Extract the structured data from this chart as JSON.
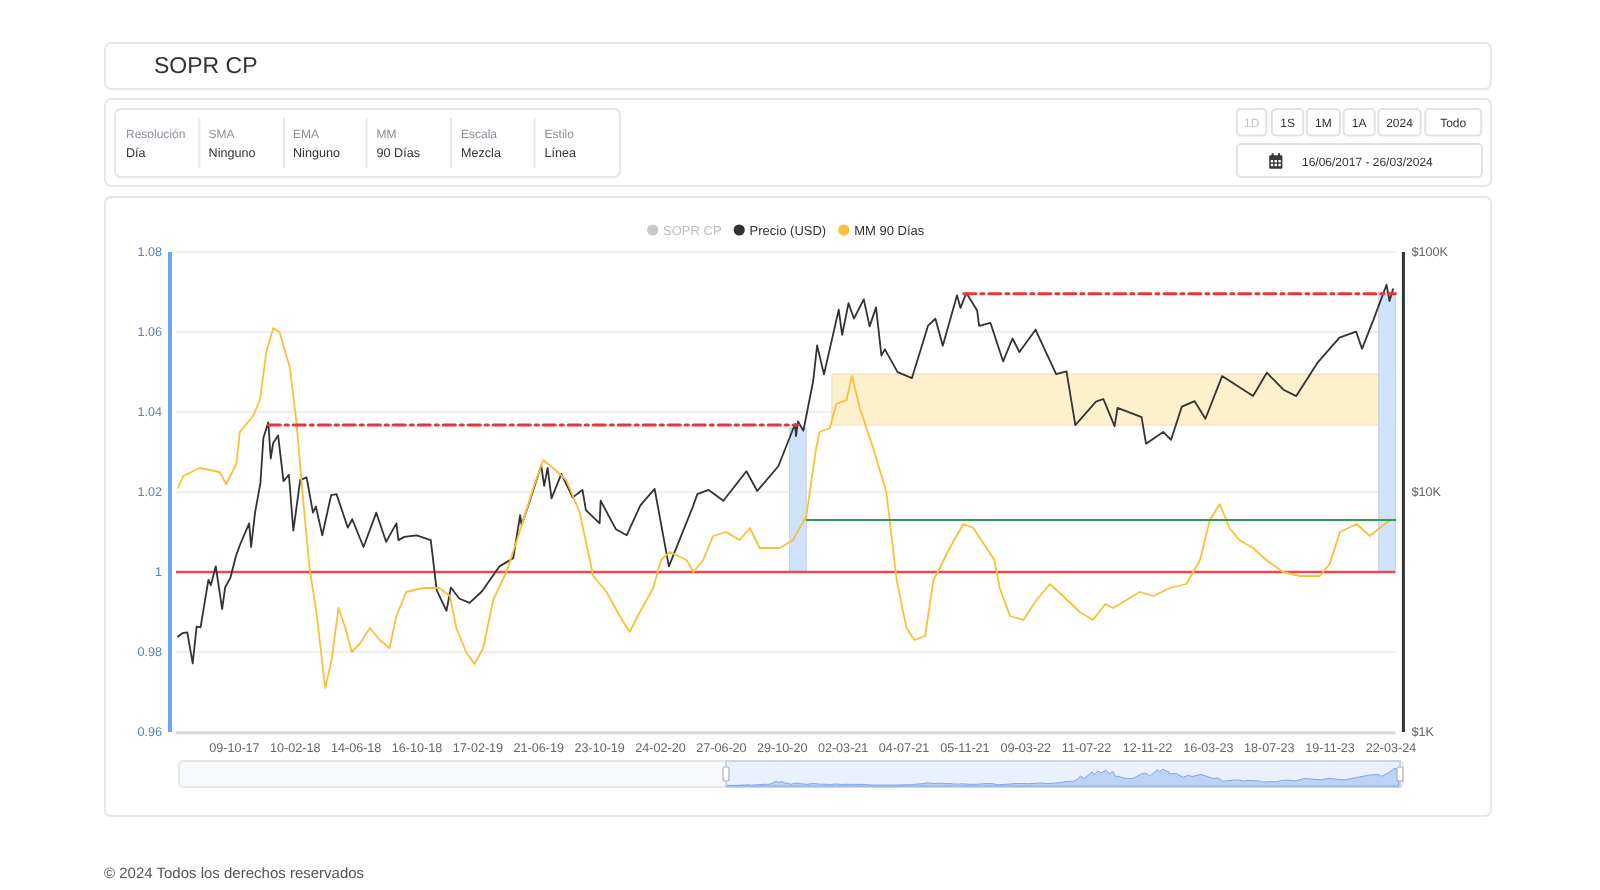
{
  "chart_data": {
    "type": "line",
    "title": "SOPR CP",
    "annotations": [
      "Resolución",
      "Día",
      "SMA",
      "Ninguno",
      "EMA",
      "Ninguno",
      "MM",
      "90 Días",
      "Escala",
      "Mezcla",
      "Estilo",
      "Línea",
      "1D",
      "1S",
      "1M",
      "1A",
      "2024",
      "Todo",
      "16/06/2017 - 26/03/2024",
      "© 2024 Todos los derechos reservados"
    ],
    "xlim": [
      "2017-06-12",
      "2024-03-31"
    ],
    "xticks": [
      {
        "value": "2017-10-09",
        "label": "09-10-17"
      },
      {
        "value": "2018-02-10",
        "label": "10-02-18"
      },
      {
        "value": "2018-06-14",
        "label": "14-06-18"
      },
      {
        "value": "2018-10-16",
        "label": "16-10-18"
      },
      {
        "value": "2019-02-17",
        "label": "17-02-19"
      },
      {
        "value": "2019-06-21",
        "label": "21-06-19"
      },
      {
        "value": "2019-10-23",
        "label": "23-10-19"
      },
      {
        "value": "2020-02-24",
        "label": "24-02-20"
      },
      {
        "value": "2020-06-27",
        "label": "27-06-20"
      },
      {
        "value": "2020-10-29",
        "label": "29-10-20"
      },
      {
        "value": "2021-03-02",
        "label": "02-03-21"
      },
      {
        "value": "2021-07-04",
        "label": "04-07-21"
      },
      {
        "value": "2021-11-05",
        "label": "05-11-21"
      },
      {
        "value": "2022-03-09",
        "label": "09-03-22"
      },
      {
        "value": "2022-07-11",
        "label": "11-07-22"
      },
      {
        "value": "2022-11-12",
        "label": "12-11-22"
      },
      {
        "value": "2023-03-16",
        "label": "16-03-23"
      },
      {
        "value": "2023-07-18",
        "label": "18-07-23"
      },
      {
        "value": "2023-11-19",
        "label": "19-11-23"
      },
      {
        "value": "2024-03-22",
        "label": "22-03-24"
      }
    ],
    "ylim": [
      0.96,
      1.08
    ],
    "yticks": [
      0.96,
      0.98,
      1,
      1.02,
      1.04,
      1.06,
      1.08
    ],
    "y2lim": [
      1000,
      100000
    ],
    "y2ticks": [
      {
        "value": 1000,
        "label": "$1K"
      },
      {
        "value": 10000,
        "label": "$10K"
      },
      {
        "value": 100000,
        "label": "$100K"
      }
    ],
    "log": "y2",
    "grid": "y",
    "legend": "top",
    "ref_lines": [
      {
        "axis": "y",
        "value": 1,
        "color": "#f0474b"
      }
    ],
    "series": [
      {
        "name": "SOPR CP",
        "color": "#c8c8c8"
      },
      {
        "name": "Precio (USD)",
        "color": "#333333",
        "axis": "y2",
        "x": [
          "2017-06-16",
          "2017-06-25",
          "2017-07-05",
          "2017-07-16",
          "2017-07-24",
          "2017-08-01",
          "2017-08-17",
          "2017-08-22",
          "2017-09-01",
          "2017-09-14",
          "2017-09-20",
          "2017-10-01",
          "2017-10-12",
          "2017-10-20",
          "2017-11-08",
          "2017-11-12",
          "2017-11-20",
          "2017-12-01",
          "2017-12-07",
          "2017-12-17",
          "2017-12-22",
          "2017-12-27",
          "2018-01-06",
          "2018-01-17",
          "2018-01-28",
          "2018-02-06",
          "2018-02-20",
          "2018-03-05",
          "2018-03-18",
          "2018-03-24",
          "2018-04-06",
          "2018-04-24",
          "2018-05-05",
          "2018-05-28",
          "2018-06-06",
          "2018-06-29",
          "2018-07-25",
          "2018-08-14",
          "2018-09-04",
          "2018-09-08",
          "2018-09-20",
          "2018-10-15",
          "2018-11-13",
          "2018-11-25",
          "2018-12-15",
          "2018-12-24",
          "2019-01-10",
          "2019-01-31",
          "2019-02-25",
          "2019-04-02",
          "2019-04-30",
          "2019-05-14",
          "2019-05-17",
          "2019-05-30",
          "2019-06-26",
          "2019-07-02",
          "2019-07-09",
          "2019-07-17",
          "2019-08-06",
          "2019-08-29",
          "2019-09-18",
          "2019-09-25",
          "2019-10-23",
          "2019-10-25",
          "2019-11-25",
          "2019-12-17",
          "2020-01-14",
          "2020-02-12",
          "2020-03-12",
          "2020-04-30",
          "2020-05-09",
          "2020-06-01",
          "2020-07-01",
          "2020-08-17",
          "2020-09-08",
          "2020-10-21",
          "2020-11-24",
          "2020-11-26",
          "2020-11-30",
          "2020-12-11",
          "2020-12-31",
          "2021-01-08",
          "2021-01-22",
          "2021-02-21",
          "2021-02-28",
          "2021-03-13",
          "2021-03-24",
          "2021-04-13",
          "2021-04-25",
          "2021-05-08",
          "2021-05-19",
          "2021-05-26",
          "2021-06-21",
          "2021-07-20",
          "2021-08-22",
          "2021-09-06",
          "2021-09-21",
          "2021-10-20",
          "2021-10-27",
          "2021-11-08",
          "2021-11-30",
          "2021-12-04",
          "2021-12-27",
          "2022-01-22",
          "2022-02-10",
          "2022-02-24",
          "2022-03-29",
          "2022-05-10",
          "2022-05-31",
          "2022-06-18",
          "2022-07-30",
          "2022-08-14",
          "2022-09-06",
          "2022-09-12",
          "2022-10-31",
          "2022-11-09",
          "2022-12-14",
          "2022-12-30",
          "2023-01-21",
          "2023-02-16",
          "2023-03-10",
          "2023-04-13",
          "2023-06-15",
          "2023-07-13",
          "2023-08-17",
          "2023-09-11",
          "2023-10-24",
          "2023-12-08",
          "2024-01-11",
          "2024-01-23",
          "2024-02-15",
          "2024-03-13",
          "2024-03-19",
          "2024-03-26"
        ],
        "values": [
          2500,
          2580,
          2600,
          1930,
          2750,
          2730,
          4300,
          4090,
          4900,
          3250,
          4000,
          4400,
          5400,
          6000,
          7400,
          5900,
          8200,
          10900,
          16800,
          19500,
          13800,
          16000,
          17200,
          11100,
          11800,
          6900,
          11200,
          11500,
          8200,
          8700,
          6600,
          9700,
          9800,
          7100,
          7700,
          5900,
          8200,
          6200,
          7400,
          6300,
          6500,
          6600,
          6300,
          3900,
          3200,
          4000,
          3600,
          3450,
          3850,
          4900,
          5300,
          8000,
          7300,
          8700,
          12900,
          10600,
          12600,
          9400,
          11900,
          9500,
          10200,
          8400,
          7400,
          9200,
          7000,
          6600,
          8800,
          10300,
          4900,
          8700,
          9800,
          10200,
          9200,
          12200,
          10100,
          12800,
          19200,
          17100,
          19700,
          18000,
          29000,
          40800,
          30900,
          57500,
          45200,
          61200,
          52800,
          63500,
          49000,
          58800,
          37000,
          39300,
          31600,
          29800,
          49300,
          52700,
          40700,
          66000,
          58500,
          67500,
          57000,
          49200,
          50700,
          35000,
          43600,
          38300,
          47400,
          31000,
          31800,
          19000,
          23800,
          24400,
          18800,
          22400,
          20500,
          15900,
          17800,
          16500,
          22700,
          23900,
          20200,
          30400,
          25100,
          31400,
          26600,
          25100,
          34500,
          44000,
          46600,
          39500,
          52000,
          73000,
          62500,
          70000
        ]
      },
      {
        "name": "MM 90 Días",
        "color": "#fbbf3c",
        "x": [
          "2017-06-16",
          "2017-06-27",
          "2017-07-30",
          "2017-09-09",
          "2017-09-22",
          "2017-10-13",
          "2017-10-20",
          "2017-11-16",
          "2017-11-30",
          "2017-12-13",
          "2017-12-27",
          "2018-01-09",
          "2018-01-30",
          "2018-02-12",
          "2018-02-26",
          "2018-03-11",
          "2018-03-25",
          "2018-04-12",
          "2018-04-25",
          "2018-05-09",
          "2018-05-23",
          "2018-06-05",
          "2018-06-21",
          "2018-07-12",
          "2018-08-01",
          "2018-08-21",
          "2018-09-04",
          "2018-09-24",
          "2018-10-28",
          "2018-12-01",
          "2018-12-22",
          "2019-01-04",
          "2019-01-24",
          "2019-02-10",
          "2019-02-28",
          "2019-03-20",
          "2019-04-16",
          "2019-05-13",
          "2019-06-10",
          "2019-06-30",
          "2019-07-20",
          "2019-08-16",
          "2019-09-12",
          "2019-10-10",
          "2019-11-06",
          "2019-12-03",
          "2019-12-23",
          "2020-01-13",
          "2020-02-09",
          "2020-02-25",
          "2020-03-14",
          "2020-04-17",
          "2020-05-01",
          "2020-05-21",
          "2020-06-10",
          "2020-07-07",
          "2020-08-03",
          "2020-08-24",
          "2020-09-13",
          "2020-10-24",
          "2020-11-20",
          "2020-12-17",
          "2021-01-06",
          "2021-01-13",
          "2021-02-03",
          "2021-02-16",
          "2021-03-09",
          "2021-03-20",
          "2021-04-05",
          "2021-05-02",
          "2021-05-29",
          "2021-06-19",
          "2021-07-09",
          "2021-07-25",
          "2021-08-16",
          "2021-09-02",
          "2021-09-15",
          "2021-10-05",
          "2021-11-02",
          "2021-11-22",
          "2021-12-19",
          "2022-01-04",
          "2022-01-15",
          "2022-02-05",
          "2022-03-04",
          "2022-03-31",
          "2022-04-27",
          "2022-05-24",
          "2022-06-27",
          "2022-07-24",
          "2022-08-18",
          "2022-09-03",
          "2022-09-30",
          "2022-10-27",
          "2022-11-24",
          "2022-12-28",
          "2023-01-30",
          "2023-02-27",
          "2023-03-19",
          "2023-04-08",
          "2023-04-28",
          "2023-05-18",
          "2023-06-15",
          "2023-07-12",
          "2023-08-15",
          "2023-09-18",
          "2023-10-29",
          "2023-11-18",
          "2023-12-09",
          "2024-01-12",
          "2024-02-08",
          "2024-02-28",
          "2024-03-20",
          "2024-03-26"
        ],
        "values": [
          1.021,
          1.024,
          1.026,
          1.025,
          1.022,
          1.027,
          1.035,
          1.039,
          1.043,
          1.055,
          1.061,
          1.06,
          1.051,
          1.038,
          1.018,
          1.001,
          0.99,
          0.971,
          0.978,
          0.991,
          0.986,
          0.98,
          0.982,
          0.986,
          0.983,
          0.981,
          0.989,
          0.995,
          0.996,
          0.996,
          0.994,
          0.986,
          0.98,
          0.977,
          0.981,
          0.993,
          1.0,
          1.01,
          1.021,
          1.028,
          1.026,
          1.023,
          1.015,
          0.999,
          0.995,
          0.989,
          0.985,
          0.99,
          0.996,
          1.003,
          1.005,
          1.003,
          1.0,
          1.003,
          1.009,
          1.01,
          1.008,
          1.011,
          1.006,
          1.006,
          1.008,
          1.014,
          1.031,
          1.035,
          1.036,
          1.042,
          1.043,
          1.049,
          1.041,
          1.031,
          1.02,
          0.998,
          0.986,
          0.983,
          0.984,
          0.998,
          1.001,
          1.006,
          1.012,
          1.011,
          1.006,
          1.003,
          0.996,
          0.989,
          0.988,
          0.993,
          0.997,
          0.994,
          0.99,
          0.988,
          0.992,
          0.991,
          0.993,
          0.995,
          0.994,
          0.996,
          0.997,
          1.003,
          1.013,
          1.017,
          1.011,
          1.008,
          1.006,
          1.003,
          1.0,
          0.999,
          0.999,
          1.002,
          1.01,
          1.012,
          1.009,
          1.011,
          1.013,
          1.013
        ]
      },
      {
        "color": "#fdf0cc",
        "axis": "y2",
        "x": [
          "2021-02-07",
          "2024-03-31"
        ],
        "values": [
          null,
          null
        ],
        "lower": [
          19000,
          19000
        ],
        "upper": [
          31000,
          31000
        ]
      },
      {
        "color": "#cfe3fc",
        "x": [
          "2020-11-13",
          "2020-12-17"
        ],
        "values": [
          null,
          null
        ],
        "lower": [
          1,
          1
        ],
        "upper": [
          1.036,
          1.036
        ]
      },
      {
        "color": "#cfe3fc",
        "x": [
          "2024-02-26",
          "2024-03-31"
        ],
        "values": [
          null,
          null
        ],
        "lower": [
          1,
          1
        ],
        "upper": [
          1.07,
          1.07
        ]
      },
      {
        "color": "#e8353a",
        "axis": "y2",
        "line_style": "dashed",
        "x": [
          "2017-12-17",
          "2020-12-01"
        ],
        "values": [
          19000,
          19000
        ]
      },
      {
        "color": "#e8353a",
        "axis": "y2",
        "line_style": "dashed",
        "x": [
          "2021-11-03",
          "2024-03-31"
        ],
        "values": [
          67000,
          67000
        ]
      },
      {
        "color": "#2e9e4e",
        "x": [
          "2020-12-17",
          "2024-03-31"
        ],
        "values": [
          1.013,
          1.013
        ]
      }
    ]
  }
}
